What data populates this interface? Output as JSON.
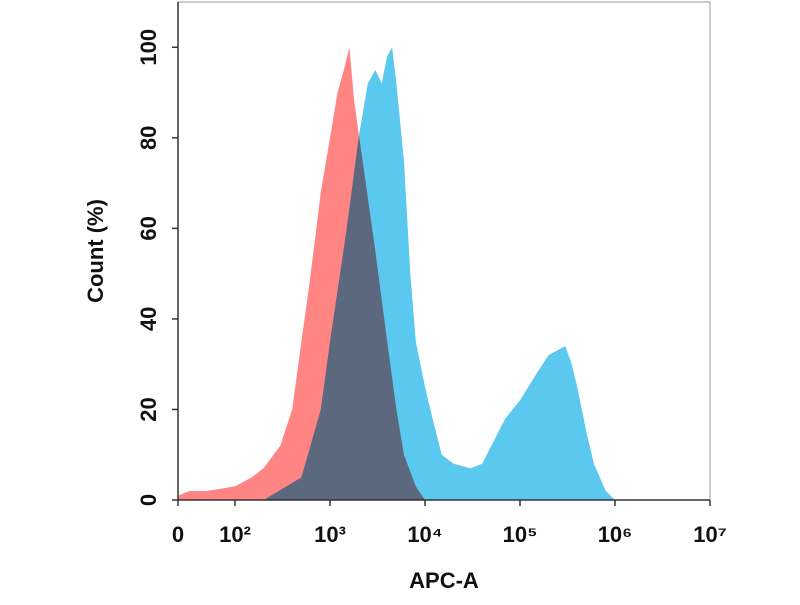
{
  "chart_data": {
    "type": "area",
    "xlabel": "APC-A",
    "ylabel": "Count  (%)",
    "xscale": "biexponential",
    "xlim": [
      0,
      10000000
    ],
    "xticks": [
      0,
      {
        "value": 100,
        "label": "10²"
      },
      {
        "value": 1000,
        "label": "10³"
      },
      {
        "value": 10000,
        "label": "10⁴"
      },
      {
        "value": 100000,
        "label": "10⁵"
      },
      {
        "value": 1000000,
        "label": "10⁶"
      },
      {
        "value": 10000000,
        "label": "10⁷"
      }
    ],
    "ylim": [
      0,
      110
    ],
    "yticks": [
      0,
      20,
      40,
      60,
      80,
      100
    ],
    "series": [
      {
        "color": "#5bc8ef",
        "x": [
          200,
          500,
          800,
          1000,
          1500,
          2000,
          2500,
          3000,
          3500,
          4000,
          4500,
          5000,
          6000,
          7000,
          8000,
          10000,
          12000,
          15000,
          20000,
          30000,
          40000,
          50000,
          70000,
          100000,
          150000,
          200000,
          300000,
          350000,
          400000,
          500000,
          600000,
          800000,
          1000000
        ],
        "values": [
          0,
          5,
          20,
          35,
          60,
          80,
          92,
          95,
          92,
          98,
          100,
          92,
          75,
          50,
          35,
          25,
          18,
          10,
          8,
          7,
          8,
          12,
          18,
          22,
          28,
          32,
          34,
          30,
          25,
          15,
          8,
          2,
          0
        ]
      },
      {
        "color": "#ff7070",
        "x": [
          0,
          20,
          50,
          100,
          150,
          200,
          300,
          400,
          500,
          600,
          700,
          800,
          1000,
          1200,
          1400,
          1600,
          1800,
          2200,
          3000,
          4000,
          5000,
          6000,
          8000,
          10000
        ],
        "values": [
          1,
          2,
          2,
          3,
          5,
          7,
          12,
          20,
          35,
          47,
          58,
          68,
          80,
          90,
          95,
          100,
          88,
          75,
          55,
          35,
          20,
          10,
          3,
          0
        ]
      }
    ]
  }
}
